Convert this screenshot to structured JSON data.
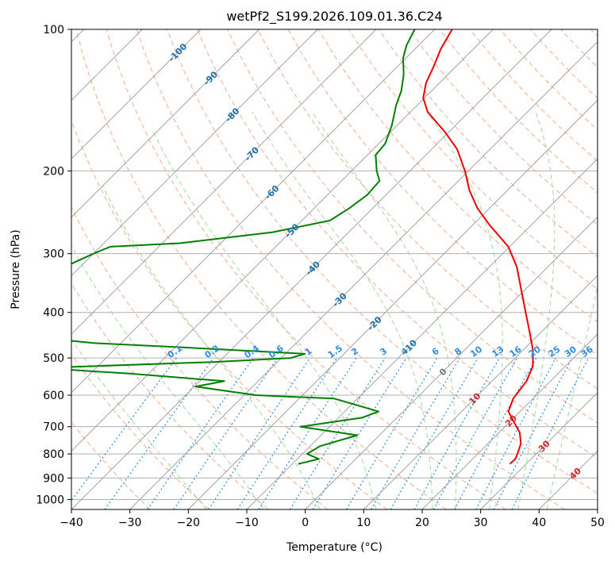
{
  "chart_data": {
    "type": "skew-t",
    "title": "wetPf2_S199.2026.109.01.36.C24",
    "xlabel": "Temperature (°C)",
    "ylabel": "Pressure (hPa)",
    "xlim": [
      -40,
      50
    ],
    "ylim": [
      1050,
      100
    ],
    "x_ticks": [
      -40,
      -30,
      -20,
      -10,
      0,
      10,
      20,
      30,
      40,
      50
    ],
    "x_tick_labels": [
      "−40",
      "−30",
      "−20",
      "−10",
      "0",
      "10",
      "20",
      "30",
      "40",
      "50"
    ],
    "y_ticks": [
      1000,
      900,
      800,
      700,
      600,
      500,
      400,
      300,
      200,
      100
    ],
    "y_tick_labels": [
      "1000",
      "900",
      "800",
      "700",
      "600",
      "500",
      "400",
      "300",
      "200",
      "100"
    ],
    "colors": {
      "temperature": "#ee0000",
      "dewpoint": "#008000",
      "dry_adiabat": "#f4a582",
      "moist_adiabat": "#a1d99b",
      "mixing_ratio": "#2c8de6",
      "isotherm": "#999999",
      "isotherm_label": "#1f6fa8",
      "positive_isotherm_label": "#d62728"
    },
    "series": [
      {
        "name": "Temperature",
        "points": [
          {
            "p": 840,
            "t": 27.2
          },
          {
            "p": 820,
            "t": 27.3
          },
          {
            "p": 800,
            "t": 26.8
          },
          {
            "p": 760,
            "t": 25.6
          },
          {
            "p": 720,
            "t": 23.5
          },
          {
            "p": 680,
            "t": 20.4
          },
          {
            "p": 650,
            "t": 18.0
          },
          {
            "p": 610,
            "t": 16.6
          },
          {
            "p": 560,
            "t": 15.9
          },
          {
            "p": 520,
            "t": 14.4
          },
          {
            "p": 480,
            "t": 11.6
          },
          {
            "p": 440,
            "t": 8.0
          },
          {
            "p": 400,
            "t": 4.0
          },
          {
            "p": 360,
            "t": -0.4
          },
          {
            "p": 320,
            "t": -5.3
          },
          {
            "p": 290,
            "t": -10.2
          },
          {
            "p": 260,
            "t": -17.3
          },
          {
            "p": 240,
            "t": -22.1
          },
          {
            "p": 220,
            "t": -26.5
          },
          {
            "p": 200,
            "t": -30.6
          },
          {
            "p": 180,
            "t": -35.6
          },
          {
            "p": 165,
            "t": -40.8
          },
          {
            "p": 150,
            "t": -47.0
          },
          {
            "p": 140,
            "t": -50.2
          },
          {
            "p": 130,
            "t": -52.3
          },
          {
            "p": 120,
            "t": -53.8
          },
          {
            "p": 110,
            "t": -55.6
          },
          {
            "p": 100,
            "t": -57.0
          }
        ]
      },
      {
        "name": "Dewpoint",
        "points": [
          {
            "p": 840,
            "t": -9.0
          },
          {
            "p": 820,
            "t": -6.3
          },
          {
            "p": 800,
            "t": -9.2
          },
          {
            "p": 770,
            "t": -8.3
          },
          {
            "p": 730,
            "t": -3.8
          },
          {
            "p": 700,
            "t": -15.0
          },
          {
            "p": 670,
            "t": -6.0
          },
          {
            "p": 650,
            "t": -4.2
          },
          {
            "p": 610,
            "t": -14.0
          },
          {
            "p": 600,
            "t": -28.0
          },
          {
            "p": 575,
            "t": -39.8
          },
          {
            "p": 560,
            "t": -35.8
          },
          {
            "p": 540,
            "t": -53.0
          },
          {
            "p": 525,
            "t": -69.6
          },
          {
            "p": 510,
            "t": -41.0
          },
          {
            "p": 500,
            "t": -28.4
          },
          {
            "p": 490,
            "t": -26.7
          },
          {
            "p": 475,
            "t": -48.3
          },
          {
            "p": 465,
            "t": -64.5
          },
          {
            "p": 455,
            "t": -72.8
          },
          {
            "p": 350,
            "t": -98.0
          },
          {
            "p": 330,
            "t": -88.0
          },
          {
            "p": 315,
            "t": -82.0
          },
          {
            "p": 300,
            "t": -80.0
          },
          {
            "p": 290,
            "t": -78.3
          },
          {
            "p": 285,
            "t": -67.0
          },
          {
            "p": 270,
            "t": -53.0
          },
          {
            "p": 255,
            "t": -45.2
          },
          {
            "p": 240,
            "t": -44.0
          },
          {
            "p": 225,
            "t": -43.2
          },
          {
            "p": 210,
            "t": -43.5
          },
          {
            "p": 200,
            "t": -45.7
          },
          {
            "p": 185,
            "t": -48.6
          },
          {
            "p": 175,
            "t": -48.9
          },
          {
            "p": 160,
            "t": -50.9
          },
          {
            "p": 145,
            "t": -53.6
          },
          {
            "p": 135,
            "t": -55.2
          },
          {
            "p": 125,
            "t": -57.5
          },
          {
            "p": 115,
            "t": -60.5
          },
          {
            "p": 108,
            "t": -62.1
          },
          {
            "p": 100,
            "t": -63.4
          }
        ]
      }
    ],
    "isotherm_labels": [
      {
        "text": "-100",
        "t": -100,
        "p": 112
      },
      {
        "text": "-90",
        "t": -90,
        "p": 127
      },
      {
        "text": "-80",
        "t": -80,
        "p": 152
      },
      {
        "text": "-70",
        "t": -70,
        "p": 184
      },
      {
        "text": "-60",
        "t": -60,
        "p": 222
      },
      {
        "text": "-50",
        "t": -50,
        "p": 268
      },
      {
        "text": "-40",
        "t": -40,
        "p": 322
      },
      {
        "text": "-30",
        "t": -30,
        "p": 376
      },
      {
        "text": "-20",
        "t": -20,
        "p": 422
      },
      {
        "text": "-10",
        "t": -10,
        "p": 473
      },
      {
        "text": "0",
        "t": 0,
        "p": 535
      },
      {
        "text": "10",
        "t": 10,
        "p": 610
      },
      {
        "text": "20",
        "t": 20,
        "p": 680
      },
      {
        "text": "30",
        "t": 30,
        "p": 770
      },
      {
        "text": "40",
        "t": 40,
        "p": 880
      }
    ],
    "mixing_ratio_labels": [
      "0.1",
      "0.2",
      "0.4",
      "0.6",
      "1",
      "1.5",
      "2",
      "3",
      "4",
      "6",
      "8",
      "10",
      "13",
      "16",
      "20",
      "25",
      "30",
      "36"
    ],
    "mixing_ratio_values": [
      0.1,
      0.2,
      0.4,
      0.6,
      1,
      1.5,
      2,
      3,
      4,
      6,
      8,
      10,
      13,
      16,
      20,
      25,
      30,
      36
    ],
    "mixing_ratio_label_pressure": 500,
    "dry_adiabat_thetas_c": [
      -30,
      -20,
      -10,
      0,
      10,
      20,
      30,
      40,
      50,
      60,
      70,
      80,
      90,
      100,
      110,
      120,
      130,
      140,
      150,
      160,
      170,
      180,
      190,
      200
    ],
    "moist_adiabat_surface_temps_c": [
      -20,
      -10,
      0,
      10,
      20,
      24,
      30,
      35,
      40
    ]
  }
}
